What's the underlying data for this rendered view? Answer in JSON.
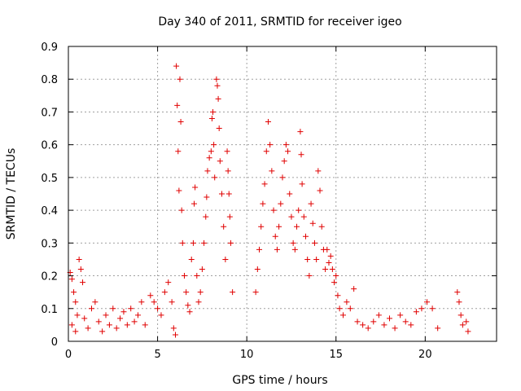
{
  "chart_data": {
    "type": "scatter",
    "title": "Day 340 of 2011, SRMTID for receiver igeo",
    "xlabel": "GPS time / hours",
    "ylabel": "SRMTID / TECUs",
    "xlim": [
      0,
      24
    ],
    "ylim": [
      0,
      0.9
    ],
    "x_ticks": [
      0,
      5,
      10,
      15,
      20
    ],
    "x_tick_labels": [
      "0",
      "5",
      "10",
      "15",
      "20"
    ],
    "y_ticks": [
      0,
      0.1,
      0.2,
      0.3,
      0.4,
      0.5,
      0.6,
      0.7,
      0.8,
      0.9
    ],
    "y_tick_labels": [
      "0",
      "0.1",
      "0.2",
      "0.3",
      "0.4",
      "0.5",
      "0.6",
      "0.7",
      "0.8",
      "0.9"
    ],
    "grid": true,
    "marker": "+",
    "color": "#e00000",
    "series": [
      {
        "name": "SRMTID",
        "points": [
          [
            0.1,
            0.21
          ],
          [
            0.2,
            0.19
          ],
          [
            0.3,
            0.15
          ],
          [
            0.4,
            0.12
          ],
          [
            0.5,
            0.08
          ],
          [
            0.6,
            0.25
          ],
          [
            0.7,
            0.22
          ],
          [
            0.8,
            0.18
          ],
          [
            0.2,
            0.05
          ],
          [
            0.4,
            0.03
          ],
          [
            0.9,
            0.07
          ],
          [
            1.1,
            0.04
          ],
          [
            1.3,
            0.1
          ],
          [
            1.5,
            0.12
          ],
          [
            1.7,
            0.06
          ],
          [
            1.9,
            0.03
          ],
          [
            2.1,
            0.08
          ],
          [
            2.3,
            0.05
          ],
          [
            2.5,
            0.1
          ],
          [
            2.7,
            0.04
          ],
          [
            2.9,
            0.07
          ],
          [
            3.1,
            0.09
          ],
          [
            3.3,
            0.05
          ],
          [
            3.5,
            0.1
          ],
          [
            3.7,
            0.06
          ],
          [
            3.9,
            0.08
          ],
          [
            4.1,
            0.12
          ],
          [
            4.3,
            0.05
          ],
          [
            4.6,
            0.14
          ],
          [
            4.8,
            0.12
          ],
          [
            5.0,
            0.1
          ],
          [
            5.2,
            0.08
          ],
          [
            5.4,
            0.15
          ],
          [
            5.6,
            0.18
          ],
          [
            5.8,
            0.12
          ],
          [
            5.9,
            0.04
          ],
          [
            6.0,
            0.02
          ],
          [
            6.05,
            0.84
          ],
          [
            6.1,
            0.72
          ],
          [
            6.15,
            0.58
          ],
          [
            6.2,
            0.46
          ],
          [
            6.25,
            0.8
          ],
          [
            6.3,
            0.67
          ],
          [
            6.35,
            0.4
          ],
          [
            6.4,
            0.3
          ],
          [
            6.5,
            0.2
          ],
          [
            6.6,
            0.15
          ],
          [
            6.7,
            0.11
          ],
          [
            6.8,
            0.09
          ],
          [
            6.9,
            0.25
          ],
          [
            7.0,
            0.3
          ],
          [
            7.05,
            0.42
          ],
          [
            7.1,
            0.47
          ],
          [
            7.2,
            0.2
          ],
          [
            7.3,
            0.12
          ],
          [
            7.4,
            0.15
          ],
          [
            7.5,
            0.22
          ],
          [
            7.6,
            0.3
          ],
          [
            7.7,
            0.38
          ],
          [
            7.75,
            0.44
          ],
          [
            7.8,
            0.52
          ],
          [
            7.9,
            0.56
          ],
          [
            8.0,
            0.58
          ],
          [
            8.05,
            0.68
          ],
          [
            8.1,
            0.7
          ],
          [
            8.15,
            0.6
          ],
          [
            8.2,
            0.5
          ],
          [
            8.3,
            0.8
          ],
          [
            8.35,
            0.78
          ],
          [
            8.4,
            0.74
          ],
          [
            8.45,
            0.65
          ],
          [
            8.5,
            0.55
          ],
          [
            8.6,
            0.45
          ],
          [
            8.7,
            0.35
          ],
          [
            8.8,
            0.25
          ],
          [
            8.9,
            0.58
          ],
          [
            8.95,
            0.52
          ],
          [
            9.0,
            0.45
          ],
          [
            9.05,
            0.38
          ],
          [
            9.1,
            0.3
          ],
          [
            9.2,
            0.15
          ],
          [
            10.5,
            0.15
          ],
          [
            10.6,
            0.22
          ],
          [
            10.7,
            0.28
          ],
          [
            10.8,
            0.35
          ],
          [
            10.9,
            0.42
          ],
          [
            11.0,
            0.48
          ],
          [
            11.1,
            0.58
          ],
          [
            11.2,
            0.67
          ],
          [
            11.3,
            0.6
          ],
          [
            11.4,
            0.52
          ],
          [
            11.5,
            0.4
          ],
          [
            11.6,
            0.32
          ],
          [
            11.7,
            0.28
          ],
          [
            11.8,
            0.35
          ],
          [
            11.9,
            0.42
          ],
          [
            12.0,
            0.5
          ],
          [
            12.1,
            0.55
          ],
          [
            12.2,
            0.6
          ],
          [
            12.3,
            0.58
          ],
          [
            12.4,
            0.45
          ],
          [
            12.5,
            0.38
          ],
          [
            12.6,
            0.3
          ],
          [
            12.7,
            0.28
          ],
          [
            12.8,
            0.35
          ],
          [
            12.9,
            0.4
          ],
          [
            13.0,
            0.64
          ],
          [
            13.05,
            0.57
          ],
          [
            13.1,
            0.48
          ],
          [
            13.2,
            0.38
          ],
          [
            13.3,
            0.32
          ],
          [
            13.4,
            0.25
          ],
          [
            13.5,
            0.2
          ],
          [
            13.6,
            0.42
          ],
          [
            13.7,
            0.36
          ],
          [
            13.8,
            0.3
          ],
          [
            13.9,
            0.25
          ],
          [
            14.0,
            0.52
          ],
          [
            14.1,
            0.46
          ],
          [
            14.2,
            0.35
          ],
          [
            14.3,
            0.28
          ],
          [
            14.4,
            0.22
          ],
          [
            14.5,
            0.28
          ],
          [
            14.6,
            0.24
          ],
          [
            14.7,
            0.26
          ],
          [
            14.8,
            0.22
          ],
          [
            14.9,
            0.18
          ],
          [
            15.0,
            0.2
          ],
          [
            15.1,
            0.14
          ],
          [
            15.2,
            0.1
          ],
          [
            15.4,
            0.08
          ],
          [
            15.6,
            0.12
          ],
          [
            15.8,
            0.1
          ],
          [
            16.0,
            0.16
          ],
          [
            16.2,
            0.06
          ],
          [
            16.5,
            0.05
          ],
          [
            16.8,
            0.04
          ],
          [
            17.1,
            0.06
          ],
          [
            17.4,
            0.08
          ],
          [
            17.7,
            0.05
          ],
          [
            18.0,
            0.07
          ],
          [
            18.3,
            0.04
          ],
          [
            18.6,
            0.08
          ],
          [
            18.9,
            0.06
          ],
          [
            19.2,
            0.05
          ],
          [
            19.5,
            0.09
          ],
          [
            19.8,
            0.1
          ],
          [
            20.1,
            0.12
          ],
          [
            20.4,
            0.1
          ],
          [
            20.7,
            0.04
          ],
          [
            21.8,
            0.15
          ],
          [
            21.9,
            0.12
          ],
          [
            22.0,
            0.08
          ],
          [
            22.1,
            0.05
          ],
          [
            22.3,
            0.06
          ],
          [
            22.4,
            0.03
          ]
        ]
      }
    ]
  }
}
